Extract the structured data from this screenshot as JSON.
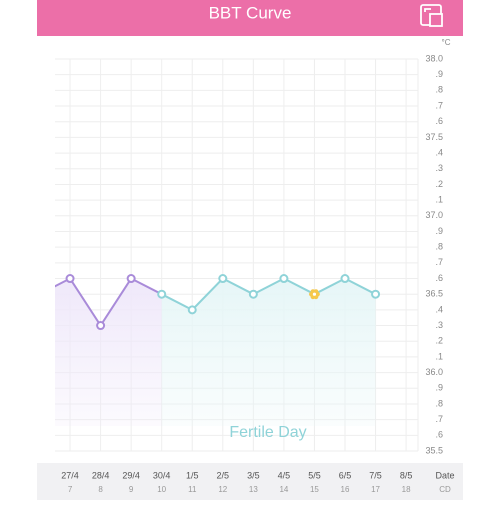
{
  "header": {
    "title": "BBT Curve"
  },
  "chart_data": {
    "type": "line",
    "unit": "°C",
    "categories": [
      null,
      "27/4",
      "28/4",
      "29/4",
      "30/4",
      "1/5",
      "2/5",
      "3/5",
      "4/5",
      "5/5",
      "6/5",
      "7/5",
      "8/5"
    ],
    "cycle_days": [
      null,
      "7",
      "8",
      "9",
      "10",
      "11",
      "12",
      "13",
      "14",
      "15",
      "16",
      "17",
      "18"
    ],
    "x_label": "Date",
    "cycle_label": "CD",
    "series": [
      {
        "color": "#a98bd9",
        "fill": "#efe8fa",
        "values": [
          36.5,
          36.6,
          36.3,
          36.6,
          36.5,
          null,
          null,
          null,
          null,
          null,
          null,
          null,
          null
        ]
      },
      {
        "color": "#8fd3d8",
        "fill": "#e6f6f7",
        "values": [
          null,
          null,
          null,
          null,
          36.5,
          36.4,
          36.6,
          36.5,
          36.6,
          36.5,
          36.6,
          36.5,
          null
        ]
      }
    ],
    "highlight_index": 9,
    "highlight_color": "#f5c84c",
    "annotation": "Fertile Day",
    "ylim": [
      35.5,
      38.0
    ],
    "yticks": [
      {
        "value": 35.5,
        "label": "35.5"
      },
      {
        "value": 35.6,
        "label": ".6"
      },
      {
        "value": 35.7,
        "label": ".7"
      },
      {
        "value": 35.8,
        "label": ".8"
      },
      {
        "value": 35.9,
        "label": ".9"
      },
      {
        "value": 36.0,
        "label": "36.0"
      },
      {
        "value": 36.1,
        "label": ".1"
      },
      {
        "value": 36.2,
        "label": ".2"
      },
      {
        "value": 36.3,
        "label": ".3"
      },
      {
        "value": 36.4,
        "label": ".4"
      },
      36.5,
      {
        "value": 36.6,
        "label": ".6"
      },
      {
        "value": 36.7,
        "label": ".7"
      },
      {
        "value": 36.8,
        "label": ".8"
      },
      {
        "value": 36.9,
        "label": ".9"
      },
      {
        "value": 37.0,
        "label": "37.0"
      },
      {
        "value": 37.1,
        "label": ".1"
      },
      {
        "value": 37.2,
        "label": ".2"
      },
      {
        "value": 37.3,
        "label": ".3"
      },
      {
        "value": 37.4,
        "label": ".4"
      },
      37.5,
      {
        "value": 37.6,
        "label": ".6"
      },
      {
        "value": 37.7,
        "label": ".7"
      },
      {
        "value": 37.8,
        "label": ".8"
      },
      {
        "value": 37.9,
        "label": ".9"
      },
      {
        "value": 38.0,
        "label": "38.0"
      }
    ],
    "grid": true
  }
}
